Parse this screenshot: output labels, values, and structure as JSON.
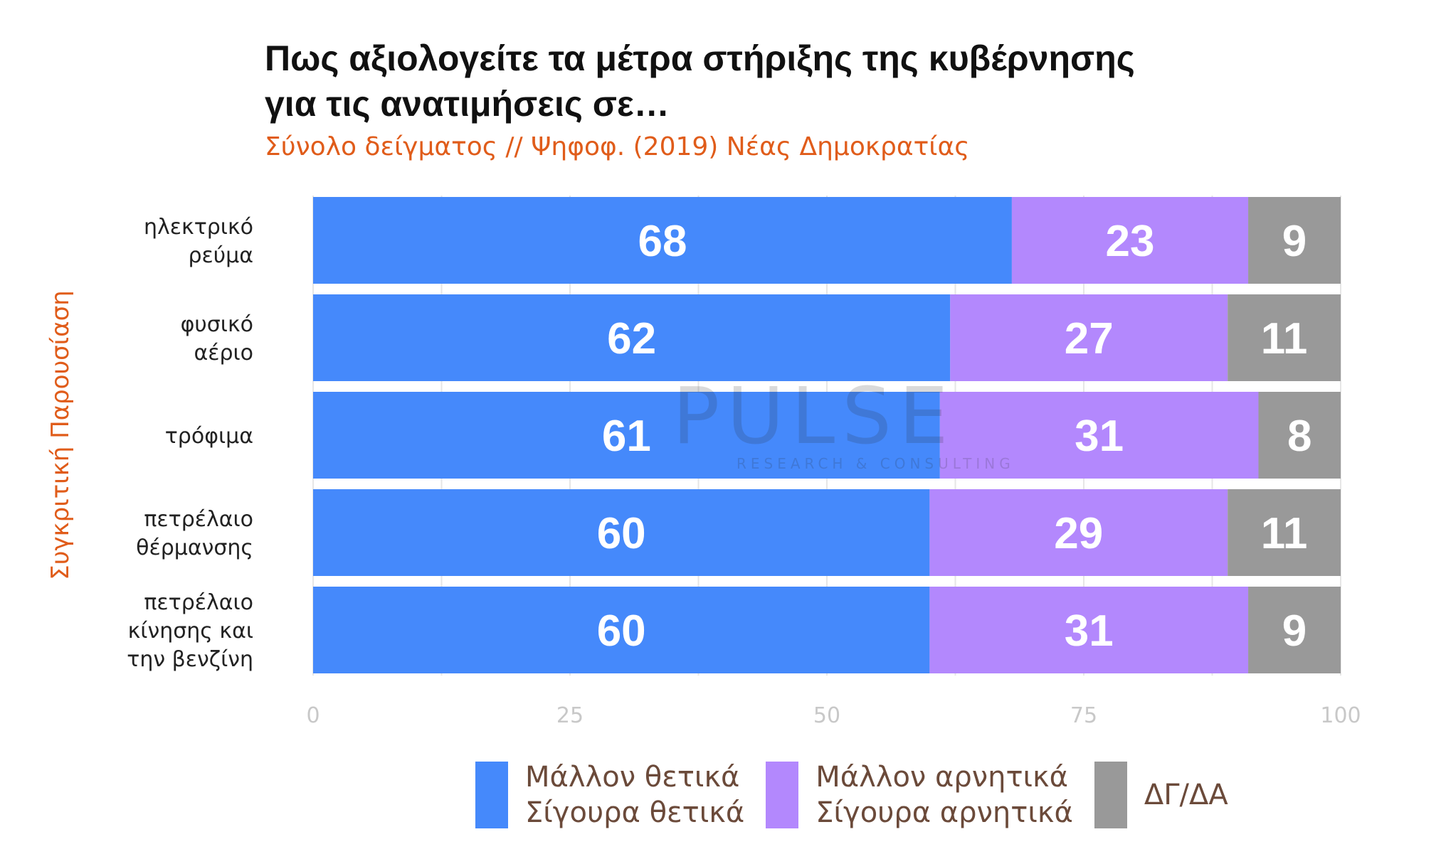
{
  "title_line1": "Πως αξιολογείτε τα μέτρα στήριξης της κυβέρνησης",
  "title_line2": "για τις ανατιμήσεις σε…",
  "subtitle": "Σύνολο δείγματος // Ψηφοφ. (2019)  Νέας Δημοκρατίας",
  "side_label": "Συγκριτική  Παρουσίαση",
  "watermark": {
    "name": "PULSE",
    "tagline": "RESEARCH & CONSULTING"
  },
  "colors": {
    "positive": "#4589fb",
    "negative": "#b388fd",
    "dkna": "#999999",
    "accent": "#e05c1a"
  },
  "chart_data": {
    "type": "bar",
    "orientation": "horizontal",
    "stacked": true,
    "categories": [
      [
        "ηλεκτρικό",
        "ρεύμα"
      ],
      [
        "φυσικό",
        "αέριο"
      ],
      [
        "τρόφιμα"
      ],
      [
        "πετρέλαιο",
        "θέρμανσης"
      ],
      [
        "πετρέλαιο",
        "κίνησης και",
        "την βενζίνη"
      ]
    ],
    "series": [
      {
        "name": "Μάλλον θετικά Σίγουρα θετικά",
        "legend_lines": [
          "Μάλλον θετικά",
          "Σίγουρα θετικά"
        ],
        "color": "#4589fb",
        "values": [
          68,
          62,
          61,
          60,
          60
        ]
      },
      {
        "name": "Μάλλον αρνητικά Σίγουρα αρνητικά",
        "legend_lines": [
          "Μάλλον αρνητικά",
          "Σίγουρα αρνητικά"
        ],
        "color": "#b388fd",
        "values": [
          23,
          27,
          31,
          29,
          31
        ]
      },
      {
        "name": "ΔΓ/ΔΑ",
        "legend_lines": [
          "ΔΓ/ΔΑ"
        ],
        "color": "#999999",
        "values": [
          9,
          11,
          8,
          11,
          9
        ]
      }
    ],
    "xlim": [
      0,
      100
    ],
    "xticks": [
      0,
      25,
      50,
      75,
      100
    ],
    "grid": true,
    "legend_position": "bottom"
  }
}
